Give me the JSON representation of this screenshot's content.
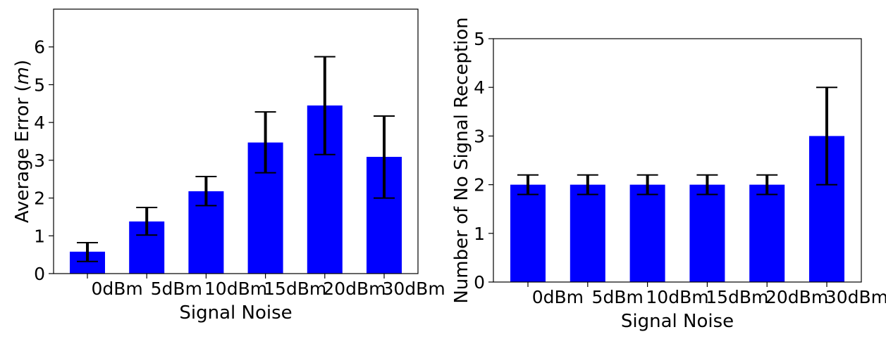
{
  "chart_data": [
    {
      "type": "bar",
      "xlabel": "Signal Noise",
      "ylabel": "Average Error (m)",
      "ylabel_parts": [
        "Average Error (",
        "m",
        ")"
      ],
      "categories": [
        "0dBm",
        "5dBm",
        "10dBm",
        "15dBm",
        "20dBm",
        "30dBm"
      ],
      "values": [
        0.58,
        1.38,
        2.18,
        3.47,
        4.45,
        3.09
      ],
      "error_low": [
        0.32,
        1.02,
        1.8,
        2.67,
        3.15,
        2.0
      ],
      "error_high": [
        0.82,
        1.75,
        2.57,
        4.28,
        5.74,
        4.17
      ],
      "ylim": [
        0,
        7
      ],
      "yticks": [
        0,
        1,
        2,
        3,
        4,
        5,
        6
      ],
      "grid": false,
      "bar_color": "#0000ff",
      "error_color": "#000000"
    },
    {
      "type": "bar",
      "xlabel": "Signal Noise",
      "ylabel": "Number of No Signal Reception",
      "categories": [
        "0dBm",
        "5dBm",
        "10dBm",
        "15dBm",
        "20dBm",
        "30dBm"
      ],
      "values": [
        2,
        2,
        2,
        2,
        2,
        3
      ],
      "error_low": [
        1.8,
        1.8,
        1.8,
        1.8,
        1.8,
        2
      ],
      "error_high": [
        2.2,
        2.2,
        2.2,
        2.2,
        2.2,
        4
      ],
      "ylim": [
        0,
        5
      ],
      "yticks": [
        0,
        1,
        2,
        3,
        4,
        5
      ],
      "grid": false,
      "bar_color": "#0000ff",
      "error_color": "#000000"
    }
  ]
}
